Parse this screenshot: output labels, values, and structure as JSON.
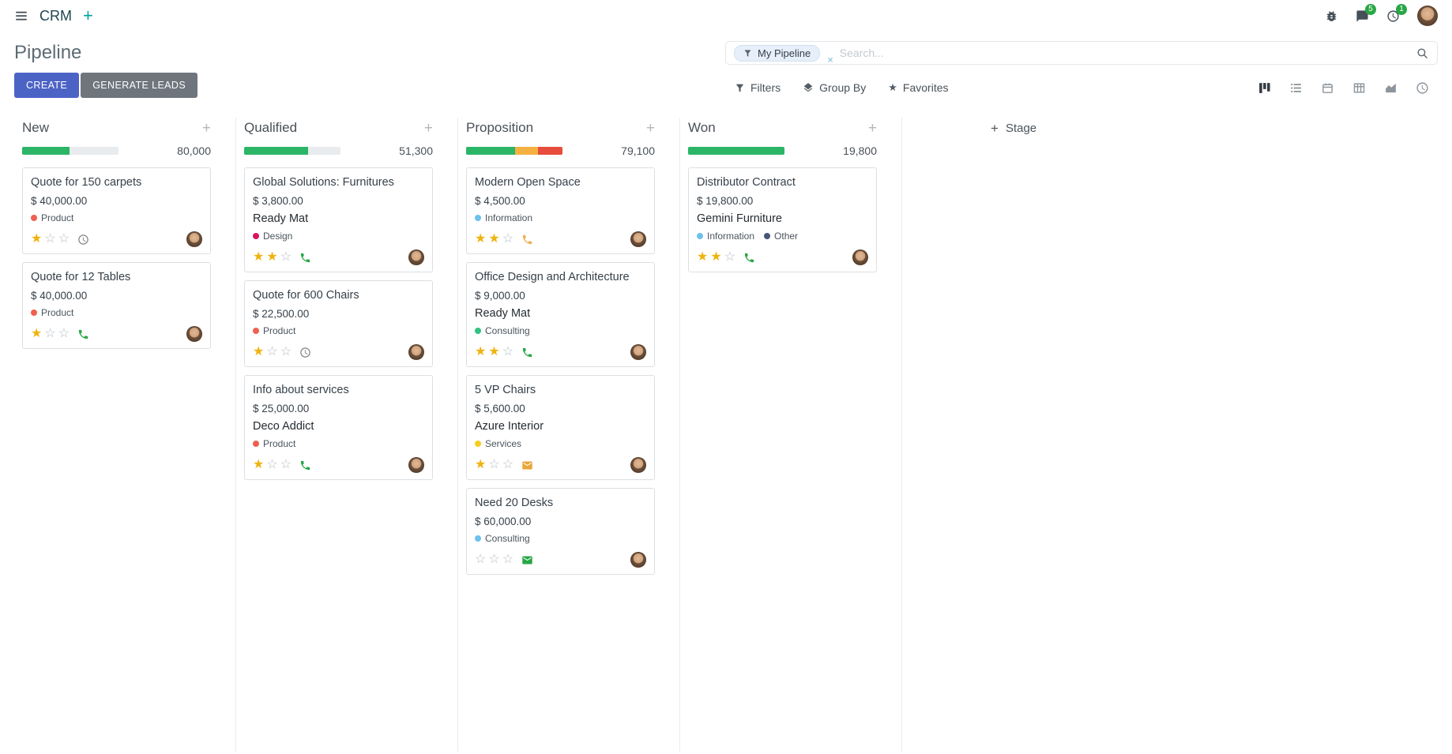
{
  "topbar": {
    "app_name": "CRM",
    "messages_badge": "5",
    "activities_badge": "1"
  },
  "control_panel": {
    "title": "Pipeline",
    "search": {
      "facet_label": "My Pipeline",
      "facet_remove": "×",
      "placeholder": "Search..."
    },
    "create_label": "CREATE",
    "generate_leads_label": "GENERATE LEADS",
    "filters_label": "Filters",
    "group_by_label": "Group By",
    "favorites_label": "Favorites"
  },
  "kanban": {
    "add_stage_label": "Stage",
    "columns": [
      {
        "name": "New",
        "count": "80,000",
        "progress": [
          {
            "status": "success",
            "color": "#2ab567",
            "pct": 49
          },
          {
            "status": "muted",
            "color": "#e9ecef",
            "pct": 51
          }
        ],
        "cards": [
          {
            "title": "Quote for 150 carpets",
            "amount": "$ 40,000.00",
            "tags": [
              {
                "label": "Product",
                "color": "#f06050"
              }
            ],
            "stars": 1,
            "activity": {
              "type": "clock",
              "color": "#7c8287"
            }
          },
          {
            "title": "Quote for 12 Tables",
            "amount": "$ 40,000.00",
            "tags": [
              {
                "label": "Product",
                "color": "#f06050"
              }
            ],
            "stars": 1,
            "activity": {
              "type": "phone",
              "color": "#28a745"
            }
          }
        ]
      },
      {
        "name": "Qualified",
        "count": "51,300",
        "progress": [
          {
            "status": "success",
            "color": "#2ab567",
            "pct": 66
          },
          {
            "status": "muted",
            "color": "#e9ecef",
            "pct": 34
          }
        ],
        "cards": [
          {
            "title": "Global Solutions: Furnitures",
            "amount": "$ 3,800.00",
            "partner": "Ready Mat",
            "tags": [
              {
                "label": "Design",
                "color": "#d6145f"
              }
            ],
            "stars": 2,
            "activity": {
              "type": "phone",
              "color": "#28a745"
            }
          },
          {
            "title": "Quote for 600 Chairs",
            "amount": "$ 22,500.00",
            "tags": [
              {
                "label": "Product",
                "color": "#f06050"
              }
            ],
            "stars": 1,
            "activity": {
              "type": "clock",
              "color": "#7c8287"
            }
          },
          {
            "title": "Info about services",
            "amount": "$ 25,000.00",
            "partner": "Deco Addict",
            "tags": [
              {
                "label": "Product",
                "color": "#f06050"
              }
            ],
            "stars": 1,
            "activity": {
              "type": "phone",
              "color": "#28a745"
            }
          }
        ]
      },
      {
        "name": "Proposition",
        "count": "79,100",
        "progress": [
          {
            "status": "success",
            "color": "#2ab567",
            "pct": 51
          },
          {
            "status": "warning",
            "color": "#f5b041",
            "pct": 24
          },
          {
            "status": "danger",
            "color": "#e74c3c",
            "pct": 25
          }
        ],
        "cards": [
          {
            "title": "Modern Open Space",
            "amount": "$ 4,500.00",
            "tags": [
              {
                "label": "Information",
                "color": "#6cc1ed"
              }
            ],
            "stars": 2,
            "activity": {
              "type": "phone",
              "color": "#f0ad4e"
            }
          },
          {
            "title": "Office Design and Architecture",
            "amount": "$ 9,000.00",
            "partner": "Ready Mat",
            "tags": [
              {
                "label": "Consulting",
                "color": "#30c381"
              }
            ],
            "stars": 2,
            "activity": {
              "type": "phone",
              "color": "#28a745"
            }
          },
          {
            "title": "5 VP Chairs",
            "amount": "$ 5,600.00",
            "partner": "Azure Interior",
            "tags": [
              {
                "label": "Services",
                "color": "#f7cd1f"
              }
            ],
            "stars": 1,
            "activity": {
              "type": "envelope",
              "color": "#e9a63a"
            }
          },
          {
            "title": "Need 20 Desks",
            "amount": "$ 60,000.00",
            "tags": [
              {
                "label": "Consulting",
                "color": "#6cc1ed"
              }
            ],
            "stars": 0,
            "activity": {
              "type": "envelope",
              "color": "#28a745"
            }
          }
        ]
      },
      {
        "name": "Won",
        "count": "19,800",
        "progress": [
          {
            "status": "success",
            "color": "#2ab567",
            "pct": 100
          }
        ],
        "cards": [
          {
            "title": "Distributor Contract",
            "amount": "$ 19,800.00",
            "partner": "Gemini Furniture",
            "tags": [
              {
                "label": "Information",
                "color": "#6cc1ed"
              },
              {
                "label": "Other",
                "color": "#475577"
              }
            ],
            "stars": 2,
            "activity": {
              "type": "phone",
              "color": "#28a745"
            }
          }
        ]
      }
    ]
  }
}
